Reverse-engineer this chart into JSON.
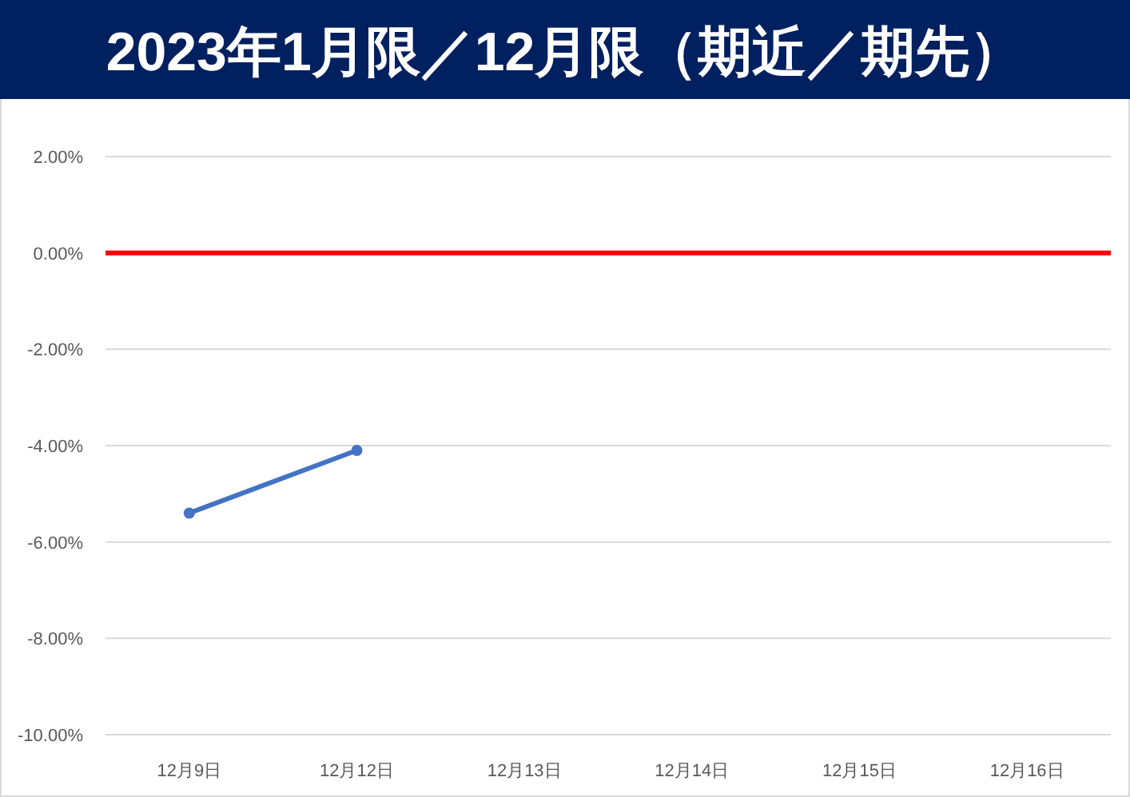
{
  "chart_data": {
    "type": "line",
    "title": "2023年1月限／12月限（期近／期先）",
    "categories": [
      "12月9日",
      "12月12日",
      "12月13日",
      "12月14日",
      "12月15日",
      "12月16日"
    ],
    "series": [
      {
        "color": "#4472c4",
        "values": [
          -5.4,
          -4.1,
          null,
          null,
          null,
          null
        ]
      }
    ],
    "ylim": [
      -10,
      2
    ],
    "yticks": [
      {
        "value": 2,
        "label": "2.00%"
      },
      {
        "value": 0,
        "label": "0.00%"
      },
      {
        "value": -2,
        "label": "-2.00%"
      },
      {
        "value": -4,
        "label": "-4.00%"
      },
      {
        "value": -6,
        "label": "-6.00%"
      },
      {
        "value": -8,
        "label": "-8.00%"
      },
      {
        "value": -10,
        "label": "-10.00%"
      }
    ],
    "ref_lines": [
      {
        "axis": "y",
        "value": 0,
        "color": "#ff0000"
      }
    ],
    "grid": "y",
    "marker": "circle",
    "line_style": "solid"
  }
}
